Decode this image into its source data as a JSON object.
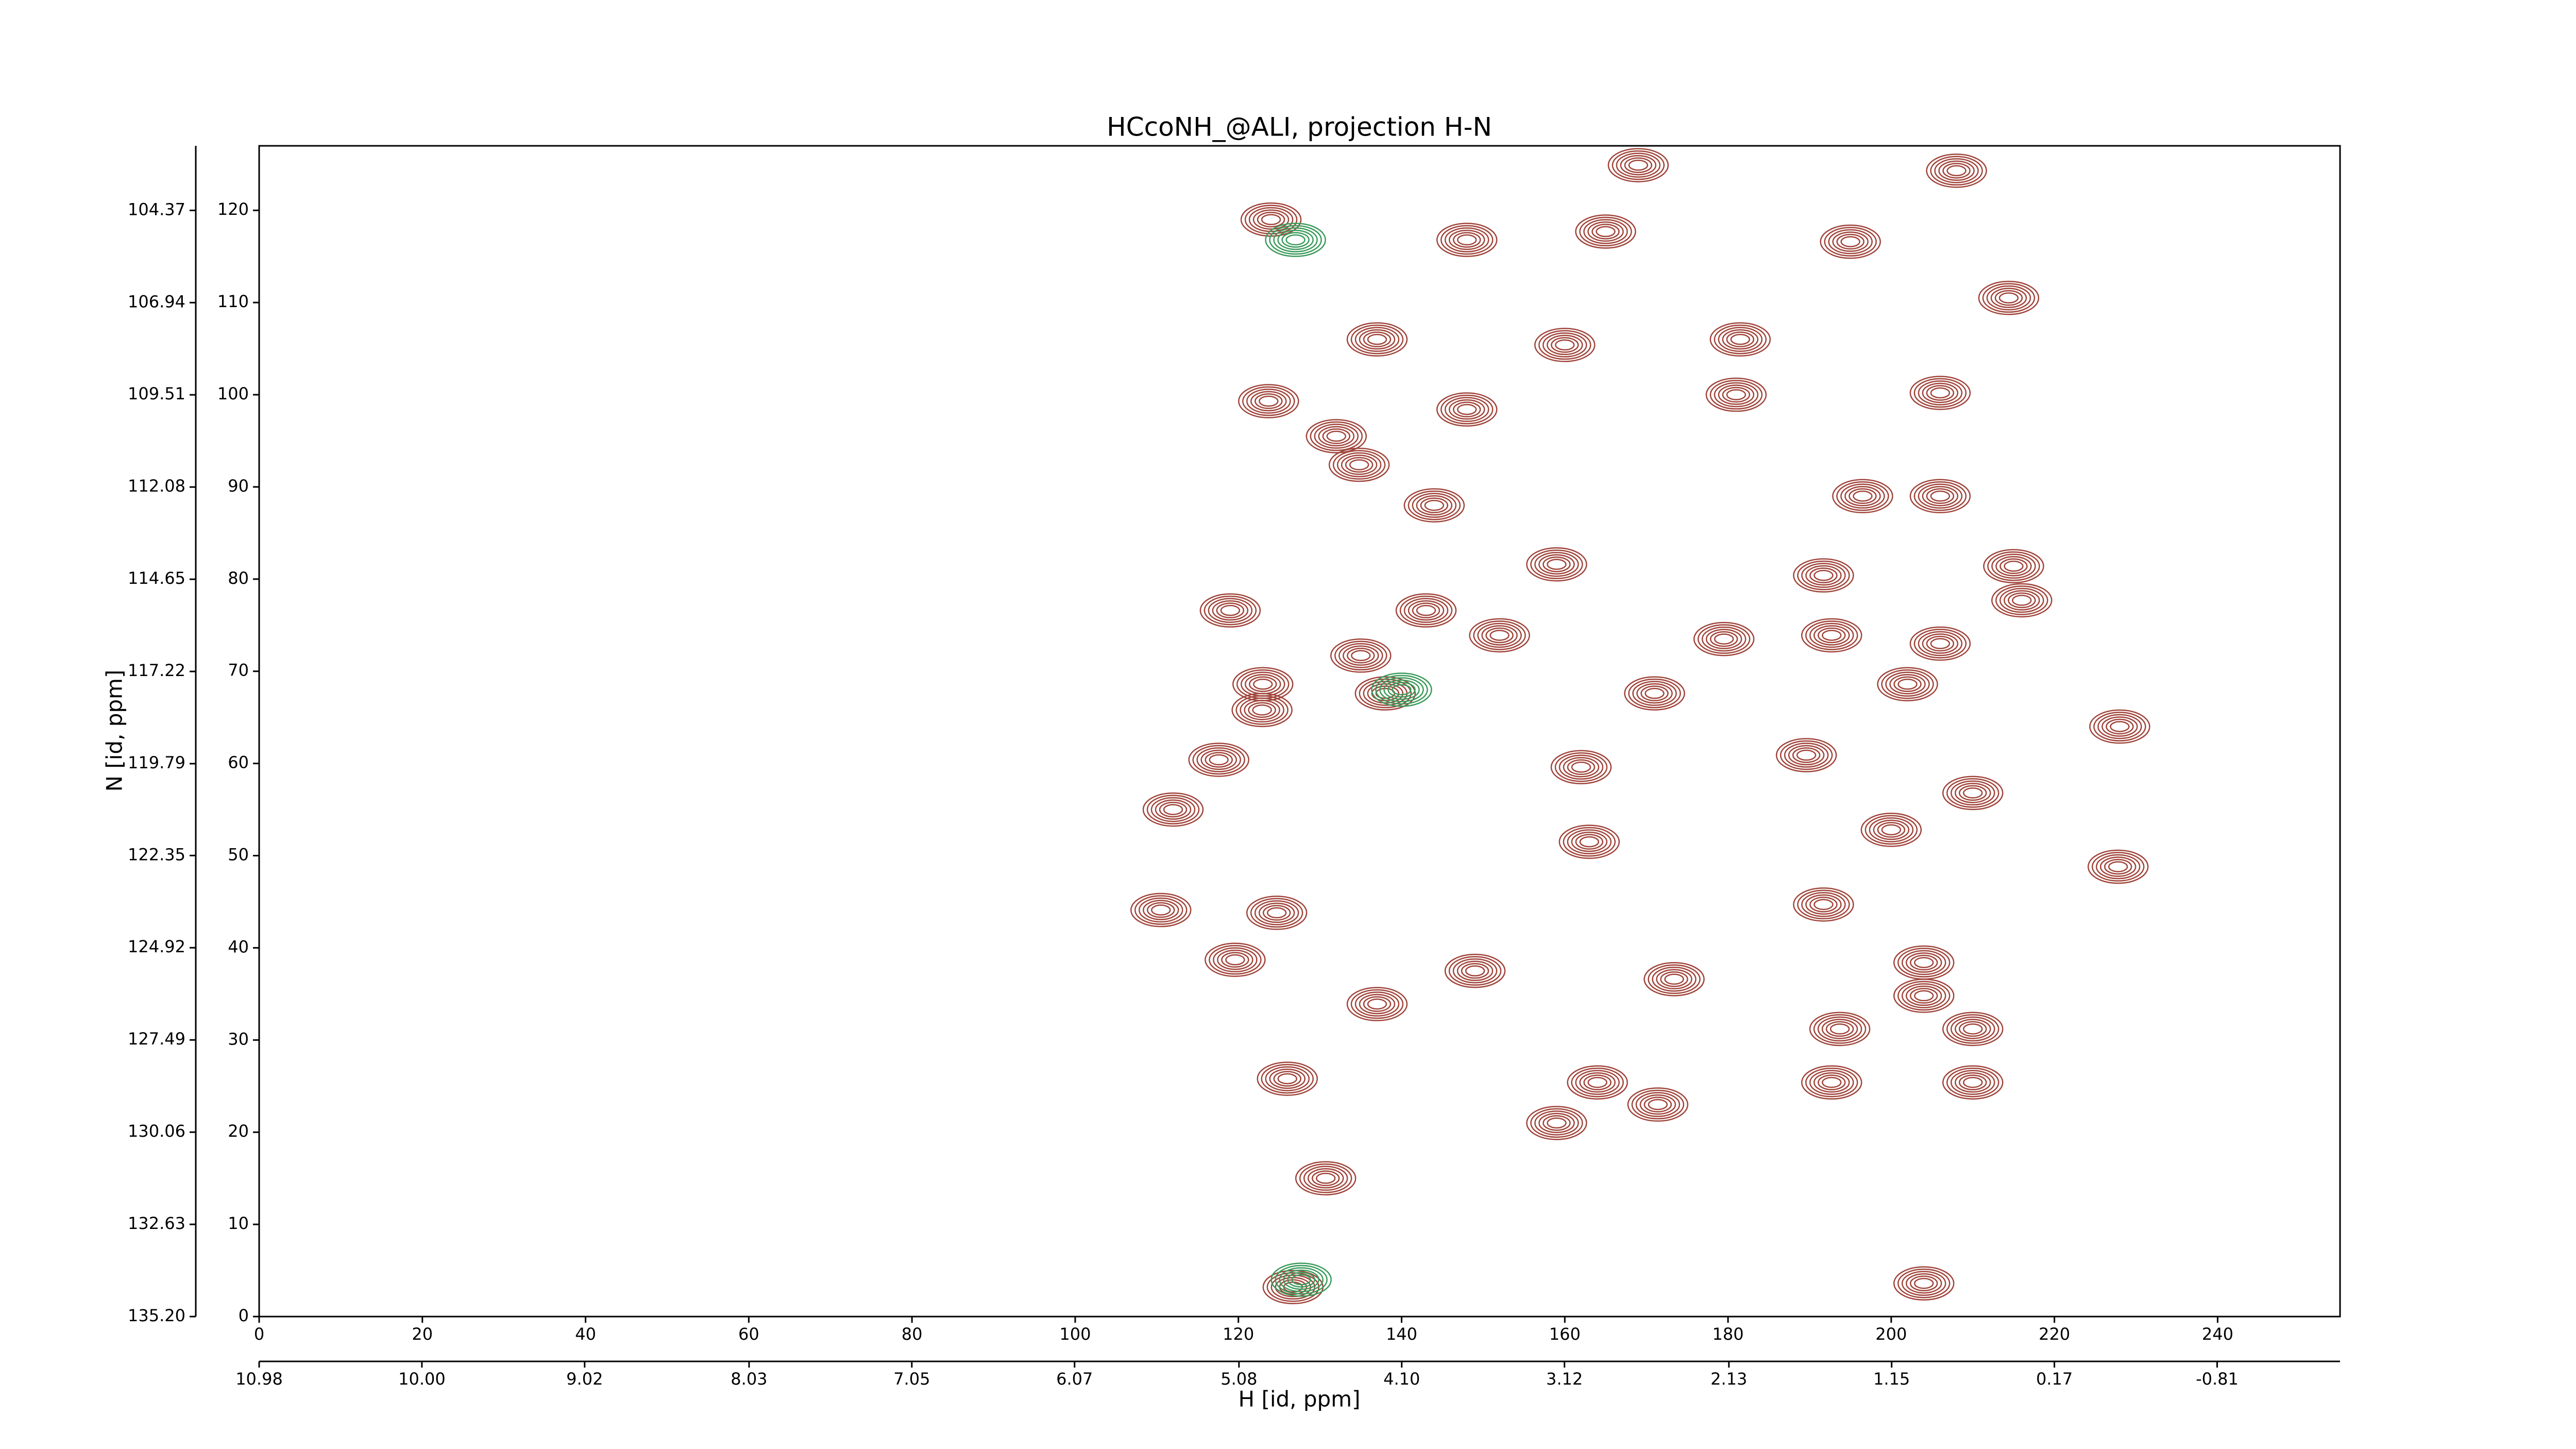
{
  "chart_data": {
    "type": "contour",
    "title": "HCcoNH_@ALI, projection H-N",
    "xlabel": "H [id, ppm]",
    "ylabel": "N [id, ppm]",
    "xlim": [
      0,
      255
    ],
    "xticks": [
      0,
      20,
      40,
      60,
      80,
      100,
      120,
      140,
      160,
      180,
      200,
      220,
      240
    ],
    "ylim": [
      0,
      127
    ],
    "yticks": [
      0,
      10,
      20,
      30,
      40,
      50,
      60,
      70,
      80,
      90,
      100,
      110,
      120
    ],
    "x2lim": [
      10.98,
      -1.55
    ],
    "x2ticks": [
      10.98,
      {
        "value": 10,
        "label": "10.00"
      },
      9.02,
      8.03,
      7.05,
      6.07,
      5.08,
      {
        "value": 4.1,
        "label": "4.10"
      },
      3.12,
      2.13,
      1.15,
      0.17,
      -0.81
    ],
    "y2lim": [
      135.2,
      102.57
    ],
    "y2ticks": [
      {
        "value": 135.2,
        "label": "135.20"
      },
      132.63,
      130.06,
      127.49,
      124.92,
      122.35,
      119.79,
      117.22,
      114.65,
      112.08,
      109.51,
      106.94,
      104.37
    ],
    "series": [
      {
        "color": "#a0443a",
        "x": [
          169,
          208,
          124,
          195,
          148,
          165,
          214.4,
          137,
          160,
          181.5,
          123.7,
          148,
          181,
          206,
          132,
          134.8,
          144,
          196.5,
          206,
          215,
          216,
          159,
          191.7,
          119,
          143,
          152,
          179.5,
          192.7,
          206,
          135,
          123,
          138,
          171,
          202,
          122.9,
          228,
          117.6,
          189.6,
          162,
          210,
          112,
          200,
          227.8,
          163,
          110.5,
          124.7,
          191.7,
          119.6,
          204,
          149,
          204,
          173.4,
          137,
          193.7,
          210,
          126,
          164,
          192.7,
          210,
          159,
          171.4,
          130.7,
          204,
          126.7
        ],
        "y": [
          124.9,
          124.3,
          119,
          116.6,
          116.8,
          117.7,
          110.5,
          106,
          105.4,
          106,
          99.3,
          98.4,
          100,
          100.2,
          95.5,
          92.4,
          88,
          89,
          89,
          81.4,
          77.7,
          81.6,
          80.4,
          76.6,
          76.6,
          73.9,
          73.5,
          73.9,
          73,
          71.7,
          68.6,
          67.6,
          67.6,
          68.6,
          65.8,
          64,
          60.4,
          60.9,
          59.6,
          56.8,
          55,
          52.8,
          48.8,
          51.5,
          44.1,
          43.8,
          44.7,
          38.7,
          38.4,
          37.5,
          34.8,
          36.6,
          33.9,
          31.2,
          31.2,
          25.8,
          25.4,
          25.4,
          25.4,
          21,
          23,
          15,
          3.6,
          3.2
        ]
      },
      {
        "color": "#3a9a5a",
        "x": [
          127,
          127.7,
          140
        ],
        "y": [
          116.8,
          4,
          68
        ]
      }
    ]
  }
}
